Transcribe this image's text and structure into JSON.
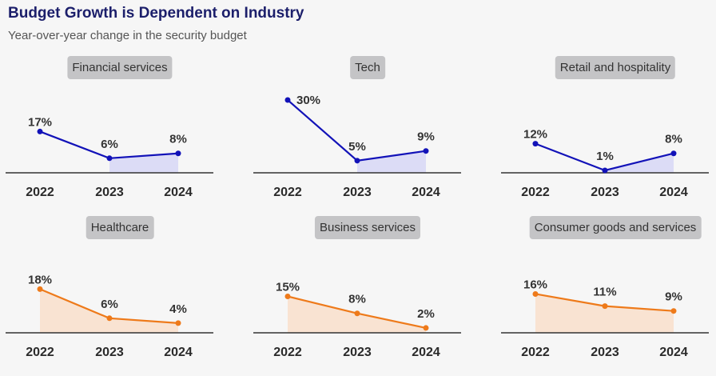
{
  "title": "Budget Growth is Dependent on Industry",
  "subtitle": "Year-over-year change in the security budget",
  "colors": {
    "blue": "#1212b8",
    "blue_fill": "#dcdcf6",
    "orange": "#ee7a1a",
    "orange_fill": "#f9e3d2"
  },
  "chart_data": [
    {
      "type": "line",
      "title": "Financial services",
      "x": [
        "2022",
        "2023",
        "2024"
      ],
      "values": [
        17,
        6,
        8
      ],
      "labels": [
        "17%",
        "6%",
        "8%"
      ],
      "color": "blue",
      "fill": "last-two"
    },
    {
      "type": "line",
      "title": "Tech",
      "x": [
        "2022",
        "2023",
        "2024"
      ],
      "values": [
        30,
        5,
        9
      ],
      "labels": [
        "30%",
        "5%",
        "9%"
      ],
      "color": "blue",
      "fill": "last-two"
    },
    {
      "type": "line",
      "title": "Retail and hospitality",
      "x": [
        "2022",
        "2023",
        "2024"
      ],
      "values": [
        12,
        1,
        8
      ],
      "labels": [
        "12%",
        "1%",
        "8%"
      ],
      "color": "blue",
      "fill": "last-two"
    },
    {
      "type": "area",
      "title": "Healthcare",
      "x": [
        "2022",
        "2023",
        "2024"
      ],
      "values": [
        18,
        6,
        4
      ],
      "labels": [
        "18%",
        "6%",
        "4%"
      ],
      "color": "orange",
      "fill": "all"
    },
    {
      "type": "area",
      "title": "Business services",
      "x": [
        "2022",
        "2023",
        "2024"
      ],
      "values": [
        15,
        8,
        2
      ],
      "labels": [
        "15%",
        "8%",
        "2%"
      ],
      "color": "orange",
      "fill": "all"
    },
    {
      "type": "area",
      "title": "Consumer goods and services",
      "x": [
        "2022",
        "2023",
        "2024"
      ],
      "values": [
        16,
        11,
        9
      ],
      "labels": [
        "16%",
        "11%",
        "9%"
      ],
      "color": "orange",
      "fill": "all"
    }
  ]
}
